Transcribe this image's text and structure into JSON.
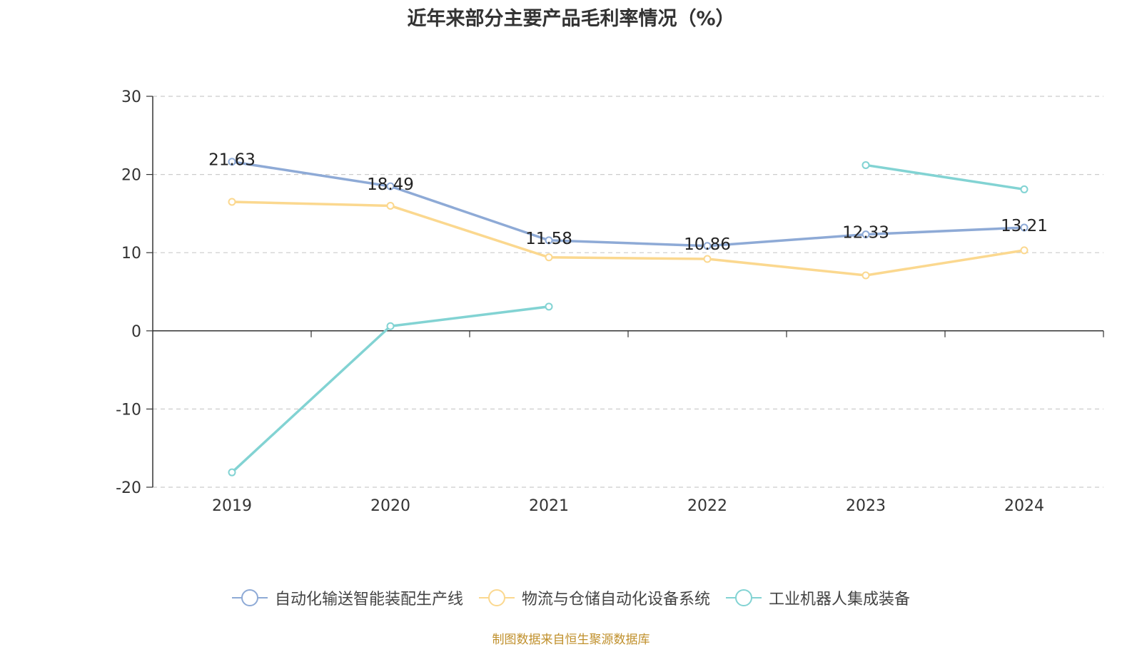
{
  "chart_data": {
    "type": "line",
    "title": "近年来部分主要产品毛利率情况（%）",
    "categories": [
      "2019",
      "2020",
      "2021",
      "2022",
      "2023",
      "2024"
    ],
    "ylim": [
      -20,
      30
    ],
    "yticks": [
      "30",
      "20",
      "10",
      "0",
      "-10",
      "-20"
    ],
    "grid": true,
    "legend_position": "bottom",
    "series": [
      {
        "name": "自动化输送智能装配生产线",
        "color": "#8eaad6",
        "values": [
          21.63,
          18.49,
          11.58,
          10.86,
          12.33,
          13.21
        ],
        "labels": [
          "21.63",
          "18.49",
          "11.58",
          "10.86",
          "12.33",
          "13.21"
        ]
      },
      {
        "name": "物流与仓储自动化设备系统",
        "color": "#fbd88f",
        "values": [
          16.5,
          16.0,
          9.4,
          9.2,
          7.1,
          10.3
        ],
        "labels": []
      },
      {
        "name": "工业机器人集成装备",
        "color": "#82d3d3",
        "values": [
          -18.1,
          0.6,
          3.1,
          null,
          21.2,
          18.1
        ],
        "labels": []
      }
    ]
  },
  "source": "制图数据来自恒生聚源数据库"
}
